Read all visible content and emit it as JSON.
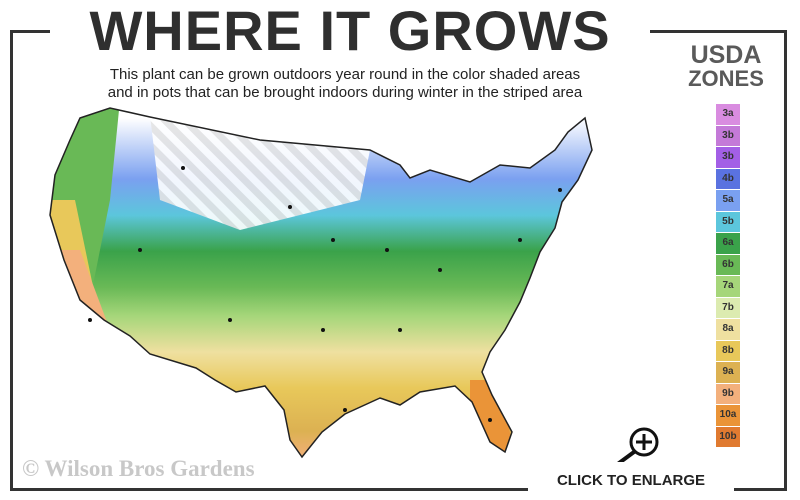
{
  "header": {
    "title": "WHERE IT GROWS",
    "subtitle_line1": "This plant can be grown outdoors year round in the color shaded areas",
    "subtitle_line2": "and in pots that can be brought indoors during winter in the striped area"
  },
  "legend": {
    "title_line1": "USDA",
    "title_line2": "ZONES",
    "zones": [
      {
        "label": "3a",
        "color": "#d98ce0"
      },
      {
        "label": "3b",
        "color": "#c47ad8"
      },
      {
        "label": "3b",
        "color": "#a35fe6"
      },
      {
        "label": "4b",
        "color": "#5a72e0"
      },
      {
        "label": "5a",
        "color": "#7aa0f0"
      },
      {
        "label": "5b",
        "color": "#5cc6dc"
      },
      {
        "label": "6a",
        "color": "#3aa24a"
      },
      {
        "label": "6b",
        "color": "#69b956"
      },
      {
        "label": "7a",
        "color": "#a6d67a"
      },
      {
        "label": "7b",
        "color": "#dcebb0"
      },
      {
        "label": "8a",
        "color": "#efe0a0"
      },
      {
        "label": "8b",
        "color": "#e8c85a"
      },
      {
        "label": "9a",
        "color": "#dcb152"
      },
      {
        "label": "9b",
        "color": "#f3b07c"
      },
      {
        "label": "10a",
        "color": "#ea9438"
      },
      {
        "label": "10b",
        "color": "#e07a30"
      }
    ]
  },
  "map": {
    "striped_area_meaning": "pots indoors in winter"
  },
  "watermark": "© Wilson Bros Gardens",
  "enlarge": {
    "label": "CLICK TO ENLARGE",
    "icon": "zoom-in-magnifier-icon"
  }
}
